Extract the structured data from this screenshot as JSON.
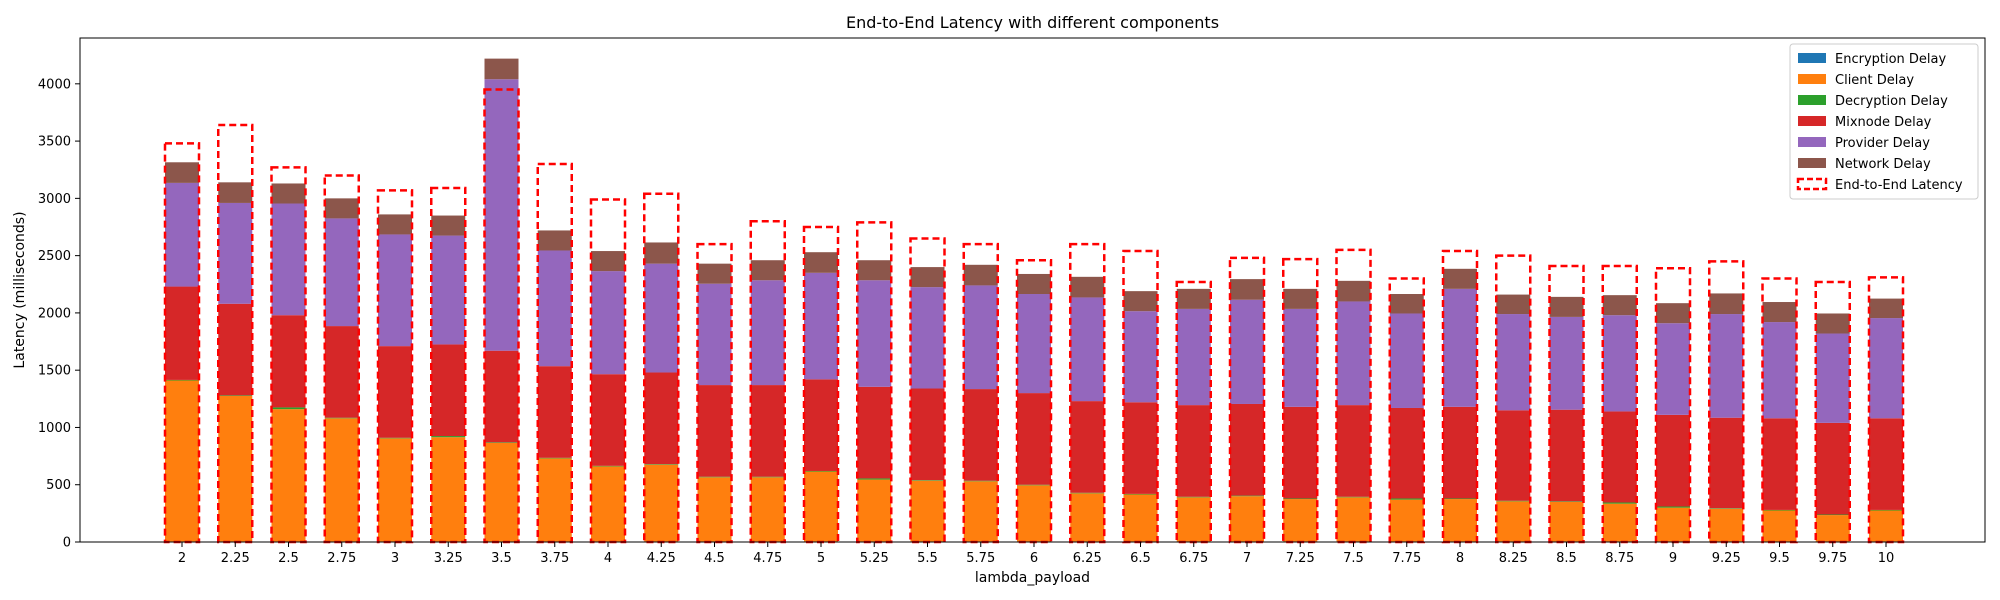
{
  "chart_data": {
    "type": "bar",
    "stacked": true,
    "title": "End-to-End Latency with different components",
    "xlabel": "lambda_payload",
    "ylabel": "Latency (milliseconds)",
    "ylim": [
      0,
      4400
    ],
    "yticks": [
      0,
      500,
      1000,
      1500,
      2000,
      2500,
      3000,
      3500,
      4000
    ],
    "grid": false,
    "legend_position": "top-right",
    "categories": [
      "2",
      "2.25",
      "2.5",
      "2.75",
      "3",
      "3.25",
      "3.5",
      "3.75",
      "4",
      "4.25",
      "4.5",
      "4.75",
      "5",
      "5.25",
      "5.5",
      "5.75",
      "6",
      "6.25",
      "6.5",
      "6.75",
      "7",
      "7.25",
      "7.5",
      "7.75",
      "8",
      "8.25",
      "8.5",
      "8.75",
      "9",
      "9.25",
      "9.5",
      "9.75",
      "10"
    ],
    "series": [
      {
        "name": "Encryption Delay",
        "color": "#1f77b4",
        "values": [
          5,
          5,
          5,
          5,
          5,
          5,
          5,
          5,
          5,
          5,
          5,
          5,
          5,
          5,
          5,
          5,
          5,
          5,
          5,
          5,
          5,
          5,
          5,
          5,
          5,
          5,
          5,
          5,
          5,
          5,
          5,
          5,
          5
        ]
      },
      {
        "name": "Client Delay",
        "color": "#ff7f0e",
        "values": [
          1405,
          1270,
          1155,
          1075,
          900,
          910,
          860,
          725,
          655,
          670,
          560,
          560,
          610,
          540,
          530,
          525,
          490,
          420,
          410,
          385,
          395,
          370,
          385,
          365,
          370,
          350,
          345,
          330,
          295,
          285,
          270,
          230,
          270
        ]
      },
      {
        "name": "Decryption Delay",
        "color": "#2ca02c",
        "values": [
          5,
          5,
          15,
          5,
          5,
          10,
          5,
          5,
          5,
          5,
          5,
          5,
          5,
          10,
          5,
          5,
          5,
          5,
          5,
          5,
          5,
          5,
          5,
          10,
          5,
          5,
          5,
          10,
          10,
          5,
          5,
          5,
          5
        ]
      },
      {
        "name": "Mixnode Delay",
        "color": "#d62728",
        "values": [
          815,
          800,
          805,
          800,
          800,
          800,
          800,
          800,
          800,
          800,
          800,
          800,
          800,
          800,
          800,
          800,
          800,
          800,
          800,
          800,
          800,
          800,
          800,
          790,
          800,
          790,
          800,
          795,
          800,
          790,
          800,
          800,
          800
        ]
      },
      {
        "name": "Provider Delay",
        "color": "#9467bd",
        "values": [
          905,
          880,
          975,
          940,
          975,
          950,
          2370,
          1010,
          900,
          950,
          885,
          915,
          930,
          930,
          885,
          905,
          865,
          905,
          795,
          840,
          910,
          855,
          905,
          825,
          1030,
          840,
          810,
          840,
          800,
          905,
          840,
          780,
          875
        ]
      },
      {
        "name": "Network Delay",
        "color": "#8c564b",
        "values": [
          180,
          180,
          175,
          175,
          175,
          175,
          180,
          175,
          175,
          185,
          175,
          175,
          180,
          175,
          175,
          180,
          175,
          180,
          175,
          175,
          180,
          175,
          180,
          170,
          175,
          170,
          175,
          175,
          175,
          180,
          175,
          175,
          170
        ]
      }
    ],
    "line_series": {
      "name": "End-to-End Latency",
      "color": "#ff0000",
      "style": "dashed-outline",
      "values": [
        3480,
        3640,
        3270,
        3200,
        3070,
        3090,
        3950,
        3300,
        2990,
        3040,
        2600,
        2800,
        2750,
        2790,
        2650,
        2600,
        2460,
        2600,
        2540,
        2270,
        2480,
        2470,
        2550,
        2300,
        2540,
        2500,
        2410,
        2410,
        2390,
        2450,
        2300,
        2270,
        2310
      ]
    }
  }
}
